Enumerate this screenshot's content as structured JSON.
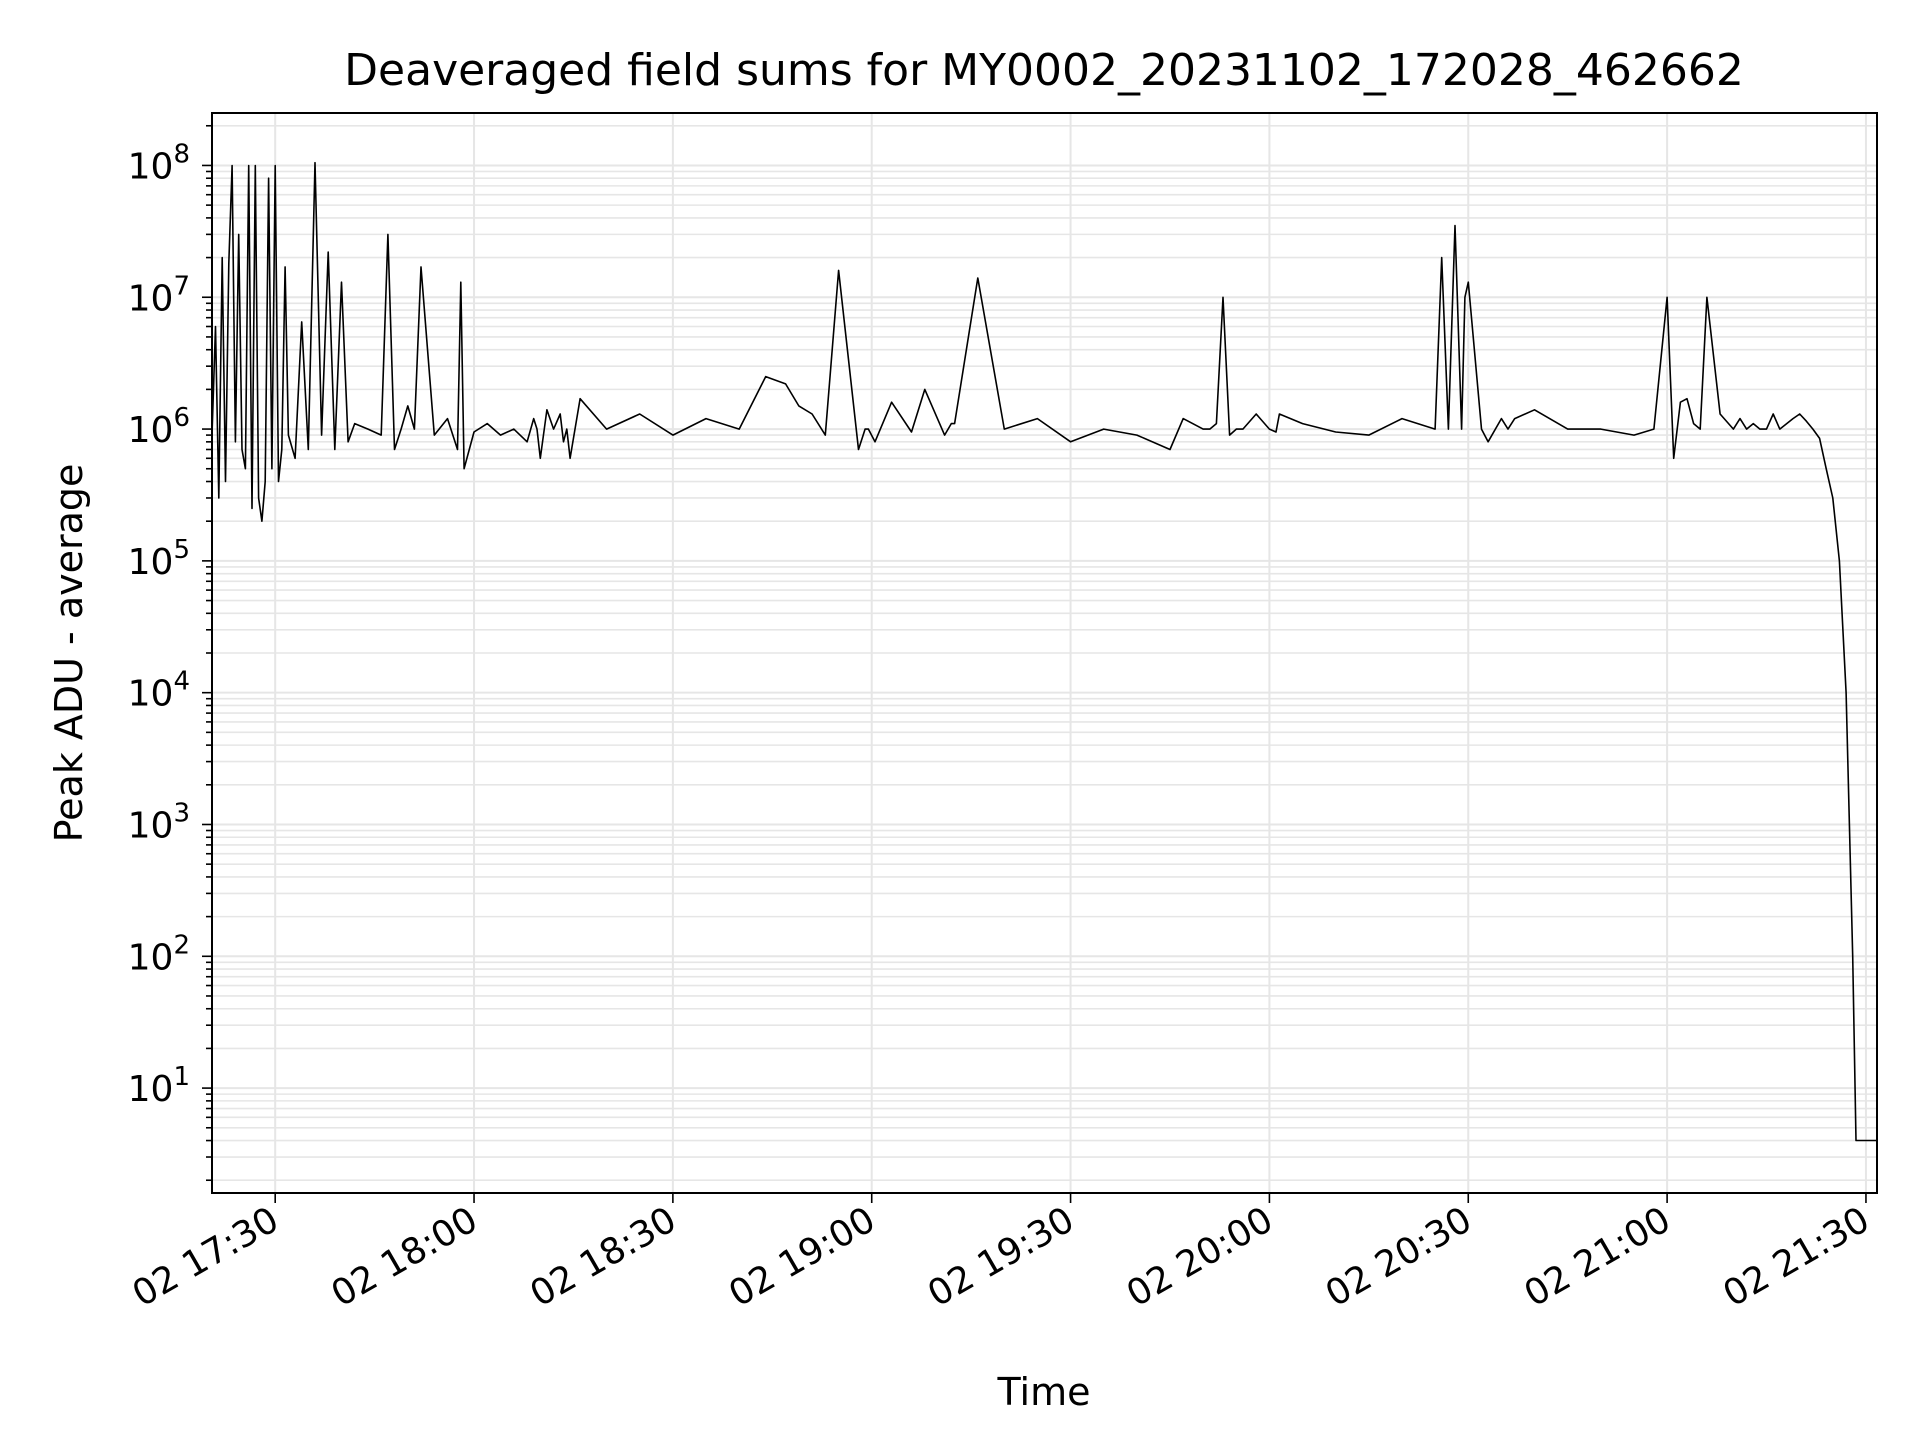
{
  "chart_data": {
    "type": "line",
    "title": "Deaveraged field sums for MY0002_20231102_172028_462662",
    "xlabel": "Time",
    "ylabel": "Peak ADU - average",
    "yscale": "log",
    "ylim": [
      1.6,
      250000000
    ],
    "xlim": [
      "2023-11-02 17:20:28",
      "2023-11-02 21:31:40"
    ],
    "grid": true,
    "line_color": "#000000",
    "grid_color": "#e6e6e6",
    "x_ticks": [
      "02 17:30",
      "02 18:00",
      "02 18:30",
      "02 19:00",
      "02 19:30",
      "02 20:00",
      "02 20:30",
      "02 21:00",
      "02 21:30"
    ],
    "y_ticks": [
      {
        "base": "10",
        "exp": "1"
      },
      {
        "base": "10",
        "exp": "2"
      },
      {
        "base": "10",
        "exp": "3"
      },
      {
        "base": "10",
        "exp": "4"
      },
      {
        "base": "10",
        "exp": "5"
      },
      {
        "base": "10",
        "exp": "6"
      },
      {
        "base": "10",
        "exp": "7"
      },
      {
        "base": "10",
        "exp": "8"
      }
    ],
    "series": [
      {
        "x": [
          "17:20:30",
          "17:21:00",
          "17:21:30",
          "17:22:00",
          "17:22:30",
          "17:23:00",
          "17:23:30",
          "17:24:00",
          "17:24:30",
          "17:25:00",
          "17:25:30",
          "17:26:00",
          "17:26:30",
          "17:27:00",
          "17:27:30",
          "17:28:00",
          "17:28:30",
          "17:29:00",
          "17:29:30",
          "17:30:00",
          "17:30:30",
          "17:31:00",
          "17:31:30",
          "17:32:00",
          "17:33:00",
          "17:34:00",
          "17:35:00",
          "17:36:00",
          "17:37:00",
          "17:38:00",
          "17:39:00",
          "17:40:00",
          "17:41:00",
          "17:42:00",
          "17:44:00",
          "17:46:00",
          "17:47:00",
          "17:48:00",
          "17:49:00",
          "17:50:00",
          "17:51:00",
          "17:52:00",
          "17:54:00",
          "17:56:00",
          "17:57:30",
          "17:58:00",
          "17:58:30",
          "18:00:00",
          "18:02:00",
          "18:04:00",
          "18:06:00",
          "18:08:00",
          "18:09:00",
          "18:09:30",
          "18:10:00",
          "18:11:00",
          "18:12:00",
          "18:13:00",
          "18:13:30",
          "18:14:00",
          "18:14:30",
          "18:16:00",
          "18:20:00",
          "18:25:00",
          "18:30:00",
          "18:35:00",
          "18:40:00",
          "18:44:00",
          "18:47:00",
          "18:49:00",
          "18:51:00",
          "18:53:00",
          "18:55:00",
          "18:58:00",
          "18:59:00",
          "18:59:30",
          "19:00:30",
          "19:03:00",
          "19:06:00",
          "19:08:00",
          "19:11:00",
          "19:12:00",
          "19:12:30",
          "19:16:00",
          "19:20:00",
          "19:25:00",
          "19:30:00",
          "19:35:00",
          "19:40:00",
          "19:45:00",
          "19:47:00",
          "19:50:00",
          "19:51:00",
          "19:52:00",
          "19:53:00",
          "19:54:00",
          "19:55:00",
          "19:56:00",
          "19:58:00",
          "20:00:00",
          "20:01:00",
          "20:01:30",
          "20:05:00",
          "20:10:00",
          "20:15:00",
          "20:20:00",
          "20:25:00",
          "20:26:00",
          "20:27:00",
          "20:28:00",
          "20:29:00",
          "20:29:30",
          "20:30:00",
          "20:32:00",
          "20:33:00",
          "20:35:00",
          "20:36:00",
          "20:37:00",
          "20:40:00",
          "20:45:00",
          "20:50:00",
          "20:55:00",
          "20:58:00",
          "21:00:00",
          "21:01:00",
          "21:02:00",
          "21:03:00",
          "21:04:00",
          "21:05:00",
          "21:06:00",
          "21:08:00",
          "21:10:00",
          "21:11:00",
          "21:12:00",
          "21:13:00",
          "21:14:00",
          "21:15:00",
          "21:16:00",
          "21:17:00",
          "21:19:00",
          "21:20:00",
          "21:21:00",
          "21:22:00",
          "21:23:00",
          "21:24:00",
          "21:25:00",
          "21:26:00",
          "21:27:00",
          "21:27:30",
          "21:28:00",
          "21:28:30",
          "21:29:00",
          "21:29:30",
          "21:30:00",
          "21:31:00",
          "21:31:40"
        ],
        "y": [
          1000000,
          6000000,
          300000,
          20000000,
          400000,
          18000000,
          100000000,
          800000,
          30000000,
          700000,
          500000,
          100000000,
          250000,
          100000000,
          300000,
          200000,
          400000,
          80000000,
          500000,
          100000000,
          400000,
          700000,
          17000000,
          900000,
          600000,
          6500000,
          700000,
          105000000,
          900000,
          22000000,
          700000,
          13000000,
          800000,
          1100000,
          1000000,
          900000,
          30000000,
          700000,
          1000000,
          1500000,
          1000000,
          17000000,
          900000,
          1200000,
          700000,
          13000000,
          500000,
          950000,
          1100000,
          900000,
          1000000,
          800000,
          1200000,
          1000000,
          600000,
          1400000,
          1000000,
          1300000,
          800000,
          1000000,
          600000,
          1700000,
          1000000,
          1300000,
          900000,
          1200000,
          1000000,
          2500000,
          2200000,
          1500000,
          1300000,
          900000,
          16000000,
          700000,
          1000000,
          1000000,
          800000,
          1600000,
          950000,
          2000000,
          900000,
          1100000,
          1100000,
          14000000,
          1000000,
          1200000,
          800000,
          1000000,
          900000,
          700000,
          1200000,
          1000000,
          1000000,
          1100000,
          10000000,
          900000,
          1000000,
          1000000,
          1300000,
          1000000,
          950000,
          1300000,
          1100000,
          950000,
          900000,
          1200000,
          1000000,
          20000000,
          1000000,
          35000000,
          1000000,
          10000000,
          13000000,
          1000000,
          800000,
          1200000,
          1000000,
          1200000,
          1400000,
          1000000,
          1000000,
          900000,
          1000000,
          10000000,
          600000,
          1600000,
          1700000,
          1100000,
          1000000,
          10000000,
          1300000,
          1000000,
          1200000,
          1000000,
          1100000,
          1000000,
          1000000,
          1300000,
          1000000,
          1200000,
          1300000,
          1150000,
          1000000,
          850000,
          500000,
          300000,
          100000,
          10000,
          1000,
          100,
          4,
          4,
          4,
          4,
          4,
          4
        ]
      }
    ]
  }
}
